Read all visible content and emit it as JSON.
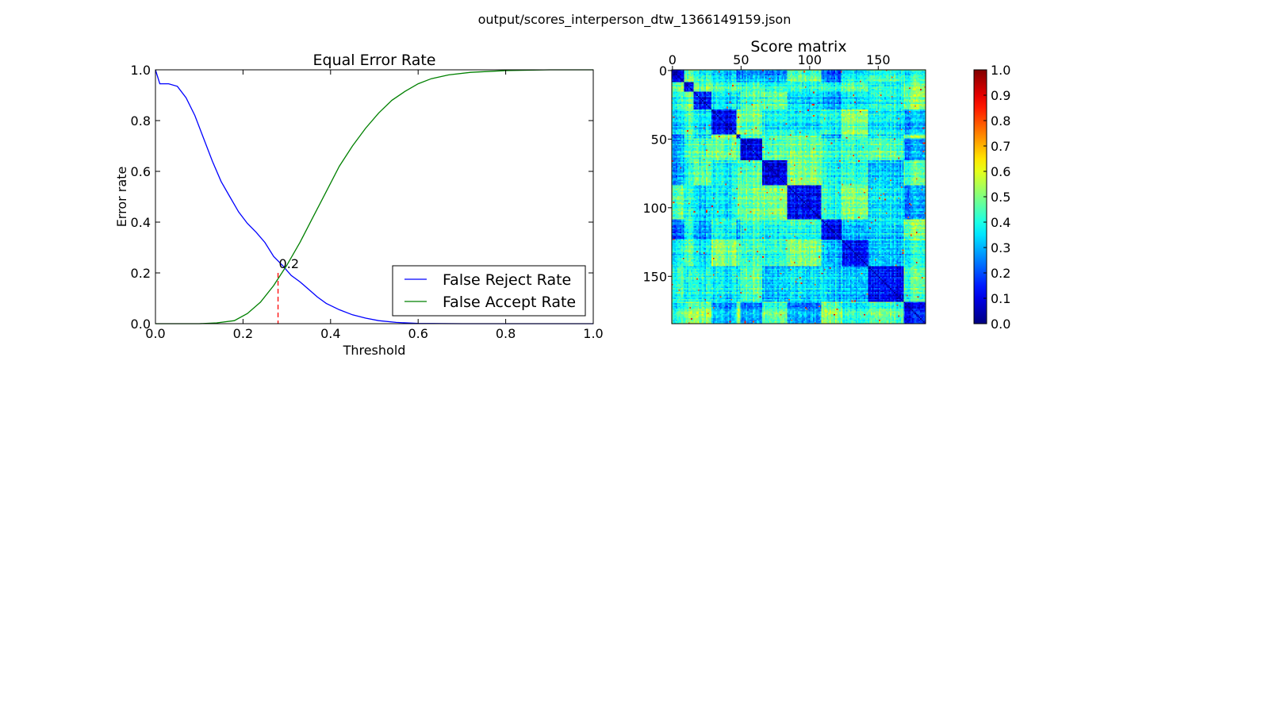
{
  "figure": {
    "title": "output/scores_interperson_dtw_1366149159.json"
  },
  "chart_data": [
    {
      "type": "line",
      "title": "Equal Error Rate",
      "xlabel": "Threshold",
      "ylabel": "Error rate",
      "xlim": [
        0,
        1
      ],
      "ylim": [
        0,
        1
      ],
      "x_ticks": [
        "0.0",
        "0.2",
        "0.4",
        "0.6",
        "0.8",
        "1.0"
      ],
      "y_ticks": [
        "0.0",
        "0.2",
        "0.4",
        "0.6",
        "0.8",
        "1.0"
      ],
      "grid": false,
      "legend_position": "lower-right",
      "series": [
        {
          "name": "False Reject Rate",
          "color": "#0000ff",
          "points": [
            [
              0.0,
              1.0
            ],
            [
              0.01,
              0.945
            ],
            [
              0.03,
              0.945
            ],
            [
              0.05,
              0.935
            ],
            [
              0.07,
              0.89
            ],
            [
              0.09,
              0.82
            ],
            [
              0.11,
              0.73
            ],
            [
              0.13,
              0.64
            ],
            [
              0.15,
              0.56
            ],
            [
              0.17,
              0.5
            ],
            [
              0.19,
              0.44
            ],
            [
              0.21,
              0.395
            ],
            [
              0.23,
              0.36
            ],
            [
              0.25,
              0.32
            ],
            [
              0.27,
              0.265
            ],
            [
              0.29,
              0.23
            ],
            [
              0.31,
              0.19
            ],
            [
              0.33,
              0.165
            ],
            [
              0.35,
              0.135
            ],
            [
              0.37,
              0.105
            ],
            [
              0.39,
              0.08
            ],
            [
              0.42,
              0.055
            ],
            [
              0.45,
              0.035
            ],
            [
              0.48,
              0.022
            ],
            [
              0.51,
              0.012
            ],
            [
              0.55,
              0.005
            ],
            [
              0.6,
              0.001
            ],
            [
              0.7,
              0.0
            ],
            [
              1.0,
              0.0
            ]
          ]
        },
        {
          "name": "False Accept Rate",
          "color": "#008000",
          "points": [
            [
              0.0,
              0.0
            ],
            [
              0.1,
              0.0
            ],
            [
              0.14,
              0.003
            ],
            [
              0.18,
              0.012
            ],
            [
              0.21,
              0.04
            ],
            [
              0.24,
              0.085
            ],
            [
              0.27,
              0.15
            ],
            [
              0.3,
              0.23
            ],
            [
              0.33,
              0.32
            ],
            [
              0.36,
              0.42
            ],
            [
              0.39,
              0.52
            ],
            [
              0.42,
              0.62
            ],
            [
              0.45,
              0.7
            ],
            [
              0.48,
              0.77
            ],
            [
              0.51,
              0.83
            ],
            [
              0.54,
              0.88
            ],
            [
              0.57,
              0.915
            ],
            [
              0.6,
              0.945
            ],
            [
              0.63,
              0.965
            ],
            [
              0.67,
              0.98
            ],
            [
              0.72,
              0.99
            ],
            [
              0.8,
              0.997
            ],
            [
              0.9,
              1.0
            ],
            [
              1.0,
              1.0
            ]
          ]
        }
      ],
      "eer": {
        "threshold": 0.28,
        "rate": 0.2,
        "label": "0.2",
        "line_color": "#ff0000",
        "line_style": "dashed"
      }
    },
    {
      "type": "heatmap",
      "title": "Score matrix",
      "rows": 185,
      "cols": 185,
      "colormap": "jet",
      "value_range": [
        0,
        1
      ],
      "x_ticks": [
        "0",
        "50",
        "100",
        "150"
      ],
      "y_ticks": [
        "0",
        "50",
        "100",
        "150"
      ],
      "tick_values": [
        0,
        50,
        100,
        150
      ],
      "x_tick_position": "top",
      "block_boundaries": [
        0,
        9,
        16,
        29,
        47,
        50,
        66,
        84,
        109,
        124,
        143,
        169,
        185
      ],
      "diagonal_block_value": 0.12,
      "typical_value": 0.35,
      "colorbar": {
        "ticks": [
          "0.0",
          "0.1",
          "0.2",
          "0.3",
          "0.4",
          "0.5",
          "0.6",
          "0.7",
          "0.8",
          "0.9",
          "1.0"
        ],
        "range": [
          0,
          1
        ]
      }
    }
  ]
}
